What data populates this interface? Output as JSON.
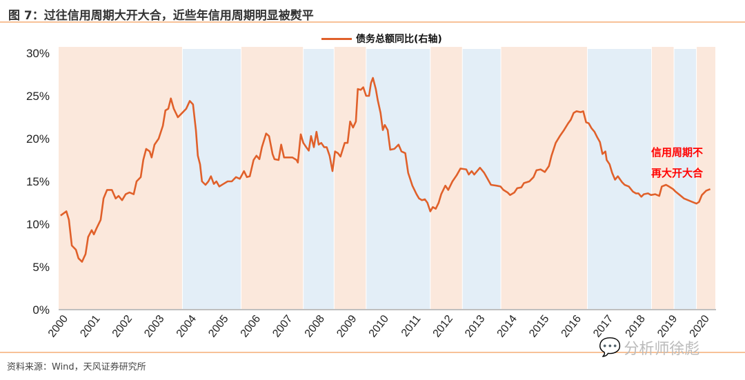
{
  "title": "图 7：过往信用周期大开大合，近些年信用周期明显被熨平",
  "source": "资料来源：Wind，天风证券研究所",
  "watermark": "分析师徐彪",
  "colors": {
    "line": "#e0602a",
    "band_expansion": "#fbe8dc",
    "band_contraction": "#e3eef7",
    "header_rule": "#f7c197",
    "annotation": "#ff0000"
  },
  "chart_data": {
    "type": "line",
    "legend": "top-center",
    "grid": false,
    "series": [
      {
        "name": "债务总额同比(右轴)",
        "points": [
          [
            2000.06,
            11
          ],
          [
            2000.24,
            11.5
          ],
          [
            2000.32,
            10.5
          ],
          [
            2000.41,
            7.5
          ],
          [
            2000.54,
            7
          ],
          [
            2000.62,
            6
          ],
          [
            2000.73,
            5.6
          ],
          [
            2000.84,
            6.5
          ],
          [
            2000.92,
            8.5
          ],
          [
            2001.03,
            9.3
          ],
          [
            2001.1,
            8.8
          ],
          [
            2001.18,
            9.5
          ],
          [
            2001.31,
            10.5
          ],
          [
            2001.4,
            13
          ],
          [
            2001.51,
            14
          ],
          [
            2001.66,
            14
          ],
          [
            2001.78,
            13
          ],
          [
            2001.87,
            13.3
          ],
          [
            2001.98,
            12.8
          ],
          [
            2002.09,
            13.5
          ],
          [
            2002.21,
            13.7
          ],
          [
            2002.34,
            13.5
          ],
          [
            2002.43,
            15
          ],
          [
            2002.56,
            15.5
          ],
          [
            2002.64,
            17.5
          ],
          [
            2002.73,
            18.8
          ],
          [
            2002.84,
            18.5
          ],
          [
            2002.9,
            17.8
          ],
          [
            2002.99,
            19.3
          ],
          [
            2003.12,
            20
          ],
          [
            2003.25,
            21.5
          ],
          [
            2003.33,
            23.3
          ],
          [
            2003.42,
            23.5
          ],
          [
            2003.5,
            24.7
          ],
          [
            2003.59,
            23.5
          ],
          [
            2003.72,
            22.5
          ],
          [
            2003.85,
            23
          ],
          [
            2003.98,
            23.5
          ],
          [
            2004.09,
            24.4
          ],
          [
            2004.19,
            24
          ],
          [
            2004.28,
            21
          ],
          [
            2004.34,
            18
          ],
          [
            2004.41,
            17
          ],
          [
            2004.47,
            15
          ],
          [
            2004.58,
            14.6
          ],
          [
            2004.67,
            15
          ],
          [
            2004.75,
            15.6
          ],
          [
            2004.84,
            14.7
          ],
          [
            2004.92,
            15
          ],
          [
            2005.01,
            14.4
          ],
          [
            2005.14,
            14.7
          ],
          [
            2005.27,
            15
          ],
          [
            2005.4,
            15
          ],
          [
            2005.53,
            15.5
          ],
          [
            2005.65,
            15.3
          ],
          [
            2005.78,
            16.2
          ],
          [
            2005.87,
            15.5
          ],
          [
            2005.96,
            15.6
          ],
          [
            2006.08,
            17.5
          ],
          [
            2006.17,
            18
          ],
          [
            2006.26,
            17.6
          ],
          [
            2006.34,
            19
          ],
          [
            2006.47,
            20.6
          ],
          [
            2006.56,
            20.3
          ],
          [
            2006.67,
            18.2
          ],
          [
            2006.73,
            17.6
          ],
          [
            2006.86,
            17.5
          ],
          [
            2006.94,
            19.3
          ],
          [
            2007.03,
            17.8
          ],
          [
            2007.16,
            17.8
          ],
          [
            2007.29,
            17.8
          ],
          [
            2007.42,
            17.5
          ],
          [
            2007.46,
            17.2
          ],
          [
            2007.55,
            20.5
          ],
          [
            2007.63,
            19.5
          ],
          [
            2007.72,
            19
          ],
          [
            2007.8,
            18.6
          ],
          [
            2007.87,
            20.3
          ],
          [
            2007.96,
            19
          ],
          [
            2008.04,
            20.8
          ],
          [
            2008.11,
            19.3
          ],
          [
            2008.19,
            19.5
          ],
          [
            2008.28,
            19
          ],
          [
            2008.36,
            19
          ],
          [
            2008.45,
            18
          ],
          [
            2008.54,
            16.2
          ],
          [
            2008.62,
            18.5
          ],
          [
            2008.71,
            18.3
          ],
          [
            2008.79,
            17.9
          ],
          [
            2008.92,
            19.5
          ],
          [
            2009.01,
            19.5
          ],
          [
            2009.09,
            22
          ],
          [
            2009.18,
            21.3
          ],
          [
            2009.27,
            22
          ],
          [
            2009.33,
            25.8
          ],
          [
            2009.42,
            25.7
          ],
          [
            2009.5,
            26
          ],
          [
            2009.59,
            25
          ],
          [
            2009.68,
            25
          ],
          [
            2009.74,
            26.5
          ],
          [
            2009.8,
            27.1
          ],
          [
            2009.89,
            25.8
          ],
          [
            2009.95,
            24.5
          ],
          [
            2010.04,
            23
          ],
          [
            2010.11,
            21
          ],
          [
            2010.17,
            21.6
          ],
          [
            2010.26,
            21
          ],
          [
            2010.34,
            18.7
          ],
          [
            2010.47,
            18.8
          ],
          [
            2010.6,
            19.3
          ],
          [
            2010.69,
            18.5
          ],
          [
            2010.81,
            18.3
          ],
          [
            2010.9,
            16
          ],
          [
            2011.03,
            14.5
          ],
          [
            2011.16,
            13.5
          ],
          [
            2011.24,
            13
          ],
          [
            2011.33,
            12.8
          ],
          [
            2011.42,
            12.9
          ],
          [
            2011.5,
            12.5
          ],
          [
            2011.59,
            11.5
          ],
          [
            2011.67,
            12
          ],
          [
            2011.76,
            11.8
          ],
          [
            2011.85,
            12.5
          ],
          [
            2011.93,
            13.5
          ],
          [
            2012.06,
            14.5
          ],
          [
            2012.15,
            14
          ],
          [
            2012.28,
            15
          ],
          [
            2012.41,
            15.7
          ],
          [
            2012.53,
            16.5
          ],
          [
            2012.71,
            16.4
          ],
          [
            2012.79,
            15.8
          ],
          [
            2012.88,
            16.2
          ],
          [
            2012.96,
            15.8
          ],
          [
            2013.05,
            16.2
          ],
          [
            2013.14,
            16.6
          ],
          [
            2013.27,
            16
          ],
          [
            2013.39,
            15.2
          ],
          [
            2013.48,
            14.6
          ],
          [
            2013.65,
            14.5
          ],
          [
            2013.78,
            14.4
          ],
          [
            2013.87,
            14
          ],
          [
            2014.0,
            13.7
          ],
          [
            2014.08,
            13.4
          ],
          [
            2014.21,
            13.7
          ],
          [
            2014.3,
            14.2
          ],
          [
            2014.43,
            14.3
          ],
          [
            2014.51,
            14.8
          ],
          [
            2014.68,
            15
          ],
          [
            2014.81,
            15.5
          ],
          [
            2014.9,
            16.3
          ],
          [
            2015.03,
            16.4
          ],
          [
            2015.16,
            16.1
          ],
          [
            2015.29,
            16.8
          ],
          [
            2015.37,
            18
          ],
          [
            2015.5,
            19.5
          ],
          [
            2015.63,
            20.3
          ],
          [
            2015.76,
            21
          ],
          [
            2015.89,
            21.8
          ],
          [
            2015.97,
            22.2
          ],
          [
            2016.06,
            23
          ],
          [
            2016.15,
            23.2
          ],
          [
            2016.28,
            23.1
          ],
          [
            2016.36,
            23.2
          ],
          [
            2016.45,
            21.9
          ],
          [
            2016.53,
            21.8
          ],
          [
            2016.62,
            21.2
          ],
          [
            2016.71,
            20.8
          ],
          [
            2016.79,
            20.2
          ],
          [
            2016.88,
            19.6
          ],
          [
            2016.96,
            18.2
          ],
          [
            2017.05,
            18.5
          ],
          [
            2017.09,
            17.5
          ],
          [
            2017.18,
            17
          ],
          [
            2017.26,
            16
          ],
          [
            2017.35,
            15.2
          ],
          [
            2017.44,
            15.6
          ],
          [
            2017.57,
            14.9
          ],
          [
            2017.65,
            14.6
          ],
          [
            2017.78,
            14.4
          ],
          [
            2017.91,
            13.8
          ],
          [
            2018.0,
            13.6
          ],
          [
            2018.08,
            13.6
          ],
          [
            2018.17,
            13.2
          ],
          [
            2018.25,
            13.5
          ],
          [
            2018.38,
            13.6
          ],
          [
            2018.47,
            13.4
          ],
          [
            2018.6,
            13.5
          ],
          [
            2018.73,
            13.3
          ],
          [
            2018.81,
            14.4
          ],
          [
            2018.94,
            14.6
          ],
          [
            2019.03,
            14.4
          ],
          [
            2019.16,
            14.1
          ],
          [
            2019.24,
            13.8
          ],
          [
            2019.37,
            13.4
          ],
          [
            2019.5,
            13
          ],
          [
            2019.63,
            12.8
          ],
          [
            2019.76,
            12.6
          ],
          [
            2019.89,
            12.4
          ],
          [
            2019.97,
            12.6
          ],
          [
            2020.06,
            13.4
          ],
          [
            2020.19,
            13.9
          ],
          [
            2020.32,
            14.1
          ]
        ]
      }
    ],
    "bands": [
      [
        2000.0,
        2003.87,
        "expansion"
      ],
      [
        2003.87,
        2005.7,
        "contraction"
      ],
      [
        2005.7,
        2007.64,
        "expansion"
      ],
      [
        2007.64,
        2008.6,
        "contraction"
      ],
      [
        2008.6,
        2009.6,
        "expansion"
      ],
      [
        2009.6,
        2011.6,
        "contraction"
      ],
      [
        2011.6,
        2012.6,
        "expansion"
      ],
      [
        2012.6,
        2013.8,
        "contraction"
      ],
      [
        2013.8,
        2016.5,
        "expansion"
      ],
      [
        2016.5,
        2018.5,
        "contraction"
      ],
      [
        2018.5,
        2019.2,
        "expansion"
      ],
      [
        2019.2,
        2019.9,
        "contraction"
      ],
      [
        2019.9,
        2020.5,
        "expansion"
      ]
    ],
    "xlim": [
      2000,
      2020.5
    ],
    "ylim": [
      0,
      30
    ],
    "y_ticks": [
      "0%",
      "5%",
      "10%",
      "15%",
      "20%",
      "25%",
      "30%"
    ],
    "x_ticks": [
      "2000",
      "2001",
      "2002",
      "2003",
      "2004",
      "2005",
      "2006",
      "2007",
      "2008",
      "2009",
      "2010",
      "2011",
      "2012",
      "2013",
      "2014",
      "2015",
      "2016",
      "2017",
      "2018",
      "2019",
      "2020"
    ],
    "annotation": [
      "信用周期不",
      "再大开大合"
    ]
  }
}
